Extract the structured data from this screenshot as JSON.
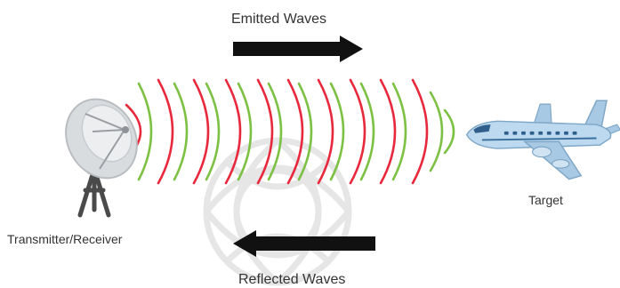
{
  "labels": {
    "emitted": "Emitted Waves",
    "reflected": "Reflected Waves",
    "target": "Target",
    "transmitter": "Transmitter/Receiver"
  },
  "colors": {
    "emitted_wave": "#e8283c",
    "reflected_wave": "#7dc144",
    "arrow": "#111111",
    "dish": "#d9dcdf",
    "tripod": "#4a4a4a",
    "plane_body": "#bcd9ef",
    "plane_window": "#2f5f8a",
    "watermark": "#e2e2e2"
  },
  "icons": {
    "antenna": "radar-dish-icon",
    "target": "airplane-icon",
    "emitted_arrow": "arrow-right-icon",
    "reflected_arrow": "arrow-left-icon"
  }
}
